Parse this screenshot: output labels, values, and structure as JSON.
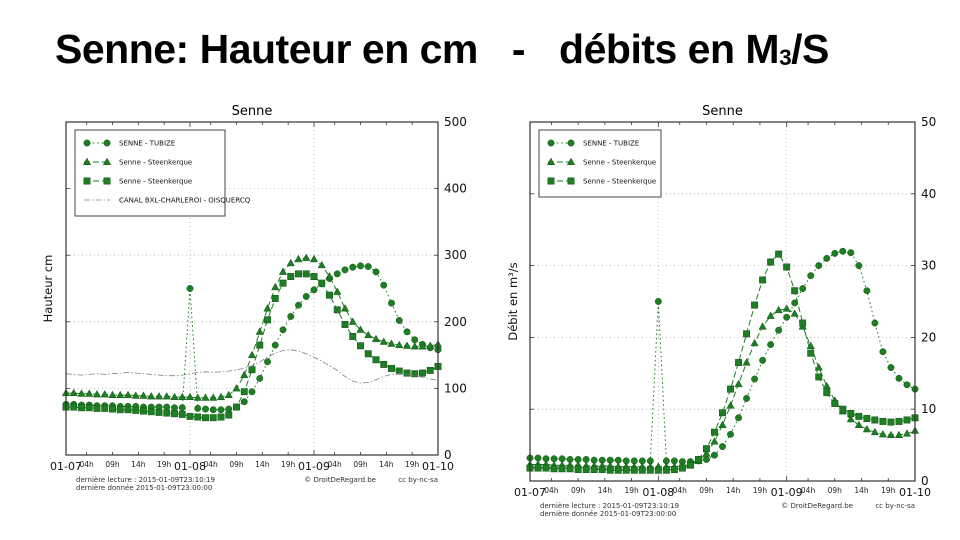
{
  "page": {
    "title_left": "Senne: Hauteur en cm",
    "title_sep": "-",
    "title_right_prefix": "débits en M",
    "title_right_sub": "3",
    "title_right_suffix": "/S"
  },
  "colors": {
    "green": "#1f7d23",
    "green_edge": "#0e5513",
    "gray": "#808080",
    "grid": "#b0b0b0",
    "axis": "#333333",
    "text": "#1a1a1a"
  },
  "chart_data": [
    {
      "type": "line",
      "title": "Senne",
      "ylabel": "Hauteur cm",
      "ylim": [
        0,
        500
      ],
      "yticks": [
        0,
        100,
        200,
        300,
        400,
        500
      ],
      "xlim": [
        0,
        72
      ],
      "x_start": 0,
      "x_step": 1.5,
      "x_day_labels": [
        {
          "h": 0,
          "label": "01-07"
        },
        {
          "h": 24,
          "label": "01-08"
        },
        {
          "h": 48,
          "label": "01-09"
        },
        {
          "h": 72,
          "label": "01-10"
        }
      ],
      "x_hour_labels": [
        {
          "h": 4,
          "label": "04h"
        },
        {
          "h": 9,
          "label": "09h"
        },
        {
          "h": 14,
          "label": "14h"
        },
        {
          "h": 19,
          "label": "19h"
        },
        {
          "h": 28,
          "label": "04h"
        },
        {
          "h": 33,
          "label": "09h"
        },
        {
          "h": 38,
          "label": "14h"
        },
        {
          "h": 43,
          "label": "19h"
        },
        {
          "h": 52,
          "label": "04h"
        },
        {
          "h": 57,
          "label": "09h"
        },
        {
          "h": 62,
          "label": "14h"
        },
        {
          "h": 67,
          "label": "19h"
        }
      ],
      "grid_v_hours": [
        24,
        48
      ],
      "footer": {
        "left_line1": "dernière lecture : 2015-01-09T23:10:19",
        "left_line2": "dernière donnée  2015-01-09T23:00:00",
        "right_copyright": "© DroitDeRegard.be",
        "right_license": "cc by-nc-sa"
      },
      "series": [
        {
          "name": "SENNE - TUBIZE",
          "marker": "circle",
          "line": "dotted",
          "color_key": "green",
          "values": [
            76,
            76,
            75,
            75,
            74,
            74,
            74,
            73,
            73,
            73,
            72,
            72,
            72,
            72,
            71,
            71,
            250,
            70,
            69,
            68,
            68,
            69,
            72,
            80,
            95,
            115,
            140,
            165,
            188,
            208,
            225,
            238,
            248,
            257,
            265,
            272,
            278,
            282,
            284,
            283,
            275,
            255,
            228,
            202,
            185,
            173,
            166,
            161,
            158
          ]
        },
        {
          "name": "Senne - Steenkerque",
          "marker": "triangle",
          "line": "dashed",
          "color_key": "green",
          "values": [
            93,
            93,
            92,
            92,
            91,
            91,
            90,
            90,
            90,
            89,
            89,
            88,
            88,
            88,
            87,
            87,
            87,
            86,
            86,
            86,
            87,
            90,
            100,
            120,
            150,
            185,
            220,
            252,
            275,
            288,
            294,
            296,
            294,
            285,
            268,
            245,
            220,
            200,
            188,
            180,
            174,
            170,
            167,
            165,
            164,
            163,
            163,
            164,
            166
          ]
        },
        {
          "name": "Senne - Steenkerque",
          "marker": "square",
          "line": "dashed",
          "color_key": "green",
          "values": [
            72,
            72,
            71,
            71,
            70,
            70,
            69,
            68,
            68,
            67,
            66,
            65,
            64,
            63,
            62,
            61,
            58,
            57,
            56,
            56,
            57,
            60,
            72,
            95,
            128,
            165,
            203,
            235,
            258,
            268,
            272,
            272,
            268,
            258,
            240,
            218,
            196,
            178,
            164,
            152,
            143,
            136,
            130,
            126,
            123,
            122,
            123,
            127,
            133
          ]
        },
        {
          "name": "CANAL BXL-CHARLEROI - OISQUERCQ",
          "marker": "none",
          "line": "dashdot",
          "color_key": "gray",
          "values": [
            122,
            121,
            120,
            121,
            122,
            121,
            122,
            123,
            124,
            123,
            122,
            121,
            120,
            119,
            119,
            120,
            122,
            124,
            125,
            124,
            125,
            126,
            128,
            130,
            134,
            140,
            147,
            153,
            157,
            158,
            156,
            152,
            147,
            141,
            134,
            127,
            118,
            111,
            108,
            109,
            113,
            118,
            121,
            122,
            121,
            119,
            117,
            114,
            112
          ]
        }
      ]
    },
    {
      "type": "line",
      "title": "Senne",
      "ylabel": "Débit en m³/s",
      "ylim": [
        0,
        50
      ],
      "yticks": [
        0,
        10,
        20,
        30,
        40,
        50
      ],
      "xlim": [
        0,
        72
      ],
      "x_start": 0,
      "x_step": 1.5,
      "x_day_labels": [
        {
          "h": 0,
          "label": "01-07"
        },
        {
          "h": 24,
          "label": "01-08"
        },
        {
          "h": 48,
          "label": "01-09"
        },
        {
          "h": 72,
          "label": "01-10"
        }
      ],
      "x_hour_labels": [
        {
          "h": 4,
          "label": "04h"
        },
        {
          "h": 9,
          "label": "09h"
        },
        {
          "h": 14,
          "label": "14h"
        },
        {
          "h": 19,
          "label": "19h"
        },
        {
          "h": 28,
          "label": "04h"
        },
        {
          "h": 33,
          "label": "09h"
        },
        {
          "h": 38,
          "label": "14h"
        },
        {
          "h": 43,
          "label": "19h"
        },
        {
          "h": 52,
          "label": "04h"
        },
        {
          "h": 57,
          "label": "09h"
        },
        {
          "h": 62,
          "label": "14h"
        },
        {
          "h": 67,
          "label": "19h"
        }
      ],
      "grid_v_hours": [
        24,
        48
      ],
      "footer": {
        "left_line1": "dernière lecture : 2015-01-09T23:10:19",
        "left_line2": "dernière donnée  2015-01-09T23:00:00",
        "right_copyright": "© DroitDeRegard.be",
        "right_license": "cc by-nc-sa"
      },
      "series": [
        {
          "name": "SENNE - TUBIZE",
          "marker": "circle",
          "line": "dotted",
          "color_key": "green",
          "values": [
            3.2,
            3.2,
            3.1,
            3.1,
            3.1,
            3.0,
            3.0,
            3.0,
            2.9,
            2.9,
            2.9,
            2.9,
            2.8,
            2.8,
            2.8,
            2.8,
            25,
            2.8,
            2.8,
            2.7,
            2.7,
            2.8,
            3.0,
            3.6,
            4.8,
            6.5,
            8.8,
            11.5,
            14.2,
            16.8,
            19.0,
            21.0,
            22.8,
            24.8,
            26.8,
            28.6,
            30.0,
            31.0,
            31.7,
            32.0,
            31.8,
            30.0,
            26.5,
            22.0,
            18.0,
            15.8,
            14.3,
            13.4,
            12.8
          ]
        },
        {
          "name": "Senne - Steenkerque",
          "marker": "triangle",
          "line": "dashed",
          "color_key": "green",
          "values": [
            2.3,
            2.3,
            2.3,
            2.2,
            2.2,
            2.2,
            2.2,
            2.1,
            2.1,
            2.1,
            2.1,
            2.0,
            2.0,
            2.0,
            2.0,
            2.0,
            2.0,
            2.0,
            2.0,
            2.1,
            2.3,
            2.8,
            3.8,
            5.5,
            7.8,
            10.5,
            13.5,
            16.5,
            19.2,
            21.5,
            23.0,
            23.8,
            24.0,
            23.3,
            21.5,
            18.8,
            15.8,
            13.2,
            11.2,
            9.7,
            8.6,
            7.8,
            7.2,
            6.8,
            6.5,
            6.4,
            6.4,
            6.6,
            7.0
          ]
        },
        {
          "name": "Senne - Steenkerque",
          "marker": "square",
          "line": "dashed",
          "color_key": "green",
          "values": [
            1.8,
            1.8,
            1.8,
            1.7,
            1.7,
            1.7,
            1.6,
            1.6,
            1.6,
            1.6,
            1.5,
            1.5,
            1.5,
            1.5,
            1.5,
            1.5,
            1.5,
            1.5,
            1.6,
            1.8,
            2.2,
            3.0,
            4.5,
            6.8,
            9.5,
            12.8,
            16.5,
            20.5,
            24.5,
            28.0,
            30.5,
            31.6,
            29.8,
            26.5,
            22.0,
            17.8,
            14.5,
            12.3,
            10.8,
            10.0,
            9.4,
            9.0,
            8.7,
            8.5,
            8.3,
            8.2,
            8.3,
            8.5,
            8.8
          ]
        }
      ]
    }
  ]
}
